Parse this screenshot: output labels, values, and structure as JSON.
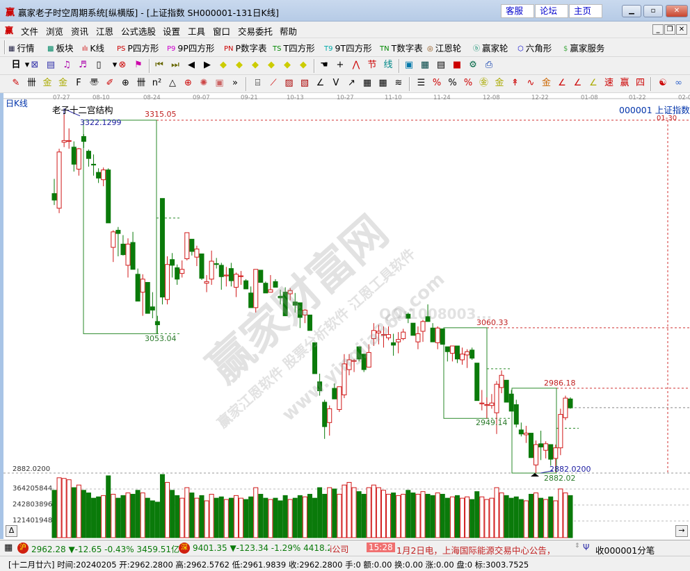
{
  "window": {
    "title": "赢家老子时空周期系统[纵横版] - [上证指数  SH000001-131日K线]",
    "logo": "赢",
    "links": [
      "客服",
      "论坛",
      "主页"
    ],
    "controls": [
      "minimize",
      "restore",
      "close"
    ]
  },
  "menu": {
    "logo": "赢",
    "items": [
      "文件",
      "浏览",
      "资讯",
      "江恩",
      "公式选股",
      "设置",
      "工具",
      "窗口",
      "交易委托",
      "帮助"
    ]
  },
  "toolbar1": [
    {
      "icon": "quote-table-icon",
      "glyph": "▦",
      "color": "#224",
      "label": "行情"
    },
    {
      "icon": "sector-blocks-icon",
      "glyph": "▩",
      "color": "#086",
      "label": "板块"
    },
    {
      "icon": "kline-icon",
      "glyph": "ılı",
      "color": "#c00",
      "label": "K线"
    },
    {
      "icon": "ps-icon",
      "glyph": "PS",
      "color": "#c00",
      "label": "P四方形"
    },
    {
      "icon": "p9-icon",
      "glyph": "P9",
      "color": "#c0c",
      "label": "9P四方形"
    },
    {
      "icon": "pn-icon",
      "glyph": "PN",
      "color": "#c00",
      "label": "P数字表"
    },
    {
      "icon": "ts-icon",
      "glyph": "TS",
      "color": "#080",
      "label": "T四方形"
    },
    {
      "icon": "t9-icon",
      "glyph": "T9",
      "color": "#0aa",
      "label": "9T四方形"
    },
    {
      "icon": "tn-icon",
      "glyph": "TN",
      "color": "#080",
      "label": "T数字表"
    },
    {
      "icon": "gann-wheel-icon",
      "glyph": "◎",
      "color": "#840",
      "label": "江恩轮"
    },
    {
      "icon": "yingjia-wheel-icon",
      "glyph": "ⓑ",
      "color": "#086",
      "label": "赢家轮"
    },
    {
      "icon": "hexagon-icon",
      "glyph": "⬡",
      "color": "#00c",
      "label": "六角形"
    },
    {
      "icon": "dollar-icon",
      "glyph": "$",
      "color": "#4a4",
      "label": "赢家服务"
    }
  ],
  "toolbar2": {
    "period": "日",
    "icons": [
      {
        "n": "period-dropdown-icon",
        "g": "▾",
        "c": "#000"
      },
      {
        "n": "chart-zoom-icon",
        "g": "⊠",
        "c": "#33a"
      },
      {
        "n": "document-icon",
        "g": "▤",
        "c": "#33a"
      },
      {
        "n": "wave3-icon",
        "g": "♫",
        "c": "#a0a"
      },
      {
        "n": "wave9-icon",
        "g": "♬",
        "c": "#a0a"
      },
      {
        "n": "candle-type-icon",
        "g": "▯",
        "c": "#000"
      },
      {
        "n": "candle-dropdown-icon",
        "g": "▾",
        "c": "#000"
      },
      {
        "n": "cross-pattern-icon",
        "g": "⊗",
        "c": "#c00"
      },
      {
        "n": "flag-icon",
        "g": "⚑",
        "c": "#c0a"
      },
      {
        "n": "first-icon",
        "g": "⏮",
        "c": "#660"
      },
      {
        "n": "last-icon",
        "g": "⏭",
        "c": "#660"
      },
      {
        "n": "left-arrow-icon",
        "g": "◀",
        "c": "#000"
      },
      {
        "n": "right-arrow-icon",
        "g": "▶",
        "c": "#000"
      },
      {
        "n": "move-left-icon",
        "g": "◆",
        "c": "#cc0"
      },
      {
        "n": "move-right-icon",
        "g": "◆",
        "c": "#cc0"
      },
      {
        "n": "expand-h-icon",
        "g": "◆",
        "c": "#cc0"
      },
      {
        "n": "shrink-h-icon",
        "g": "◆",
        "c": "#cc0"
      },
      {
        "n": "shrink-v-icon",
        "g": "◆",
        "c": "#cc0"
      },
      {
        "n": "expand-v-icon",
        "g": "◆",
        "c": "#cc0"
      },
      {
        "n": "hand-icon",
        "g": "☚",
        "c": "#000"
      },
      {
        "n": "crosshair-icon",
        "g": "+",
        "c": "#000"
      },
      {
        "n": "zigzag-icon",
        "g": "⋀",
        "c": "#c00"
      },
      {
        "n": "node-icon",
        "g": "节",
        "c": "#c00"
      },
      {
        "n": "line-label-icon",
        "g": "线",
        "c": "#088"
      },
      {
        "n": "calendar-icon",
        "g": "▣",
        "c": "#07a"
      },
      {
        "n": "calculator-icon",
        "g": "▦",
        "c": "#044"
      },
      {
        "n": "notes-icon",
        "g": "▤",
        "c": "#000"
      },
      {
        "n": "save-icon",
        "g": "■",
        "c": "#c00"
      },
      {
        "n": "settings-icon",
        "g": "⚙",
        "c": "#064"
      },
      {
        "n": "print-icon",
        "g": "⎙",
        "c": "#03a"
      }
    ]
  },
  "toolbar3": [
    {
      "n": "pen-icon",
      "g": "✎",
      "c": "#c00"
    },
    {
      "n": "grid-lines-icon",
      "g": "卌",
      "c": "#000"
    },
    {
      "n": "gold-lines-icon",
      "g": "金",
      "c": "#aa0"
    },
    {
      "n": "gold-lines2-icon",
      "g": "金",
      "c": "#aa0"
    },
    {
      "n": "fib-lines-icon",
      "g": "F",
      "c": "#000"
    },
    {
      "n": "spiral-icon",
      "g": "〠",
      "c": "#000"
    },
    {
      "n": "brush-icon",
      "g": "✐",
      "c": "#c00"
    },
    {
      "n": "circle-grid-icon",
      "g": "⊕",
      "c": "#000"
    },
    {
      "n": "lines-icon",
      "g": "卌",
      "c": "#000"
    },
    {
      "n": "n2-icon",
      "g": "n²",
      "c": "#000"
    },
    {
      "n": "triangle-icon",
      "g": "△",
      "c": "#000"
    },
    {
      "n": "target-icon",
      "g": "⊕",
      "c": "#c00"
    },
    {
      "n": "star-icon",
      "g": "✺",
      "c": "#c44"
    },
    {
      "n": "square-target-icon",
      "g": "▣",
      "c": "#c66"
    },
    {
      "n": "more-icon",
      "g": "»",
      "c": "#000"
    },
    {
      "n": "box-icon",
      "g": "⌸",
      "c": "#000"
    },
    {
      "n": "fan-icon",
      "g": "⟋",
      "c": "#c00"
    },
    {
      "n": "square-fan-icon",
      "g": "▨",
      "c": "#a00"
    },
    {
      "n": "square-fan2-icon",
      "g": "▧",
      "c": "#a00"
    },
    {
      "n": "angle-icon",
      "g": "∠",
      "c": "#000"
    },
    {
      "n": "v-angle-icon",
      "g": "V",
      "c": "#000"
    },
    {
      "n": "arrow-up-icon",
      "g": "↗",
      "c": "#000"
    },
    {
      "n": "grid-icon",
      "g": "▦",
      "c": "#000"
    },
    {
      "n": "grid2-icon",
      "g": "▦",
      "c": "#000"
    },
    {
      "n": "parallel-icon",
      "g": "≋",
      "c": "#000"
    },
    {
      "n": "bar-list-icon",
      "g": "☰",
      "c": "#000"
    },
    {
      "n": "percent-fan-icon",
      "g": "%",
      "c": "#c00"
    },
    {
      "n": "percent-icon",
      "g": "%",
      "c": "#000"
    },
    {
      "n": "percent-lines-icon",
      "g": "%",
      "c": "#c00"
    },
    {
      "n": "gold-circle-icon",
      "g": "㊎",
      "c": "#aa0"
    },
    {
      "n": "gold-lines3-icon",
      "g": "金",
      "c": "#aa0"
    },
    {
      "n": "rocket-icon",
      "g": "↟",
      "c": "#c00"
    },
    {
      "n": "wave-icon",
      "g": "∿",
      "c": "#c00"
    },
    {
      "n": "gold-line4-icon",
      "g": "金",
      "c": "#c60"
    },
    {
      "n": "j-angle-icon",
      "g": "∠",
      "c": "#c00"
    },
    {
      "n": "f-angle-icon",
      "g": "∠",
      "c": "#c00"
    },
    {
      "n": "gold-angle-icon",
      "g": "∠",
      "c": "#aa0"
    },
    {
      "n": "speed-angle-icon",
      "g": "速",
      "c": "#c00"
    },
    {
      "n": "ying-angle-icon",
      "g": "赢",
      "c": "#c00"
    },
    {
      "n": "four-angle-icon",
      "g": "四",
      "c": "#c00"
    },
    {
      "n": "yinyang-icon",
      "g": "☯",
      "c": "#c00"
    },
    {
      "n": "infinity-icon",
      "g": "∞",
      "c": "#36c"
    }
  ],
  "chart": {
    "period_label": "日K线",
    "structure_label": "老子十二宫结构",
    "symbol_label": "000001 上证指数",
    "date_ticks": [
      "07-27",
      "08-10",
      "08-24",
      "09-07",
      "09-21",
      "10-13",
      "10-27",
      "11-10",
      "11-24",
      "12-08",
      "12-22",
      "01-08",
      "01-22",
      "02-0"
    ],
    "y_min_label": "2882.0200",
    "volume_ticks": [
      "364205844",
      "242803896",
      "121401948"
    ],
    "annotations": {
      "box1_high": "3315.05",
      "box1_low": "3053.04",
      "peak": "3322.1299",
      "box2_high": "3060.33",
      "box2_low": "2949.14",
      "box3_high": "2986.18",
      "box3_low": "2882.02",
      "trough": "2882.0200",
      "future_date": "01-30"
    },
    "watermark": {
      "main": "赢家财富网",
      "line1": "赢家江恩软件 股票分析软件 江恩工具软件",
      "site": "www.yingjia360.com",
      "qq": "QQ:1008003..."
    },
    "colors": {
      "up": "#d01818",
      "down": "#0a7a0a",
      "box": "#2a8a2a",
      "level": "#d03030",
      "trough": "#1a1aa0"
    }
  },
  "chart_data": {
    "type": "candlestick",
    "x_ticks": [
      "07-27",
      "08-10",
      "08-24",
      "09-07",
      "09-21",
      "10-13",
      "10-27",
      "11-10",
      "11-24",
      "12-08",
      "12-22",
      "01-08",
      "01-22",
      "02-0"
    ],
    "ylim": [
      2882.02,
      3322.13
    ],
    "ohlc": [
      [
        3225,
        3243,
        3211,
        3217
      ],
      [
        3207,
        3280,
        3201,
        3276
      ],
      [
        3288,
        3322,
        3282,
        3290
      ],
      [
        3289,
        3305,
        3280,
        3290
      ],
      [
        3282,
        3289,
        3252,
        3261
      ],
      [
        3255,
        3281,
        3247,
        3280
      ],
      [
        3295,
        3298,
        3281,
        3289
      ],
      [
        3277,
        3279,
        3258,
        3268
      ],
      [
        3261,
        3273,
        3247,
        3260
      ],
      [
        3251,
        3256,
        3238,
        3244
      ],
      [
        3242,
        3257,
        3234,
        3254
      ],
      [
        3254,
        3256,
        3189,
        3189
      ],
      [
        3159,
        3180,
        3141,
        3178
      ],
      [
        3180,
        3184,
        3148,
        3176
      ],
      [
        3163,
        3174,
        3149,
        3150
      ],
      [
        3137,
        3170,
        3122,
        3163
      ],
      [
        3165,
        3178,
        3132,
        3132
      ],
      [
        3126,
        3133,
        3093,
        3093
      ],
      [
        3104,
        3126,
        3075,
        3120
      ],
      [
        3116,
        3116,
        3078,
        3078
      ],
      [
        3086,
        3104,
        3072,
        3082
      ],
      [
        3068,
        3075,
        3053,
        3064
      ],
      [
        3219,
        3219,
        3089,
        3098
      ],
      [
        3095,
        3148,
        3089,
        3138
      ],
      [
        3144,
        3152,
        3122,
        3137
      ],
      [
        3134,
        3138,
        3113,
        3120
      ],
      [
        3127,
        3143,
        3122,
        3132
      ],
      [
        3145,
        3177,
        3143,
        3177
      ],
      [
        3169,
        3169,
        3149,
        3154
      ],
      [
        3147,
        3161,
        3136,
        3157
      ],
      [
        3151,
        3151,
        3119,
        3121
      ],
      [
        3115,
        3125,
        3104,
        3117
      ],
      [
        3120,
        3155,
        3113,
        3142
      ],
      [
        3139,
        3146,
        3133,
        3138
      ],
      [
        3137,
        3140,
        3107,
        3123
      ],
      [
        3124,
        3135,
        3111,
        3125
      ],
      [
        3133,
        3140,
        3111,
        3118
      ],
      [
        3110,
        3128,
        3098,
        3126
      ],
      [
        3124,
        3130,
        3113,
        3124
      ],
      [
        3118,
        3120,
        3108,
        3108
      ],
      [
        3103,
        3111,
        3085,
        3085
      ],
      [
        3085,
        3132,
        3079,
        3132
      ],
      [
        3131,
        3131,
        3116,
        3116
      ],
      [
        3115,
        3117,
        3103,
        3103
      ],
      [
        3104,
        3125,
        3104,
        3107
      ],
      [
        3117,
        3120,
        3110,
        3110
      ],
      [
        3099,
        3107,
        3089,
        3097
      ],
      [
        3104,
        3110,
        3075,
        3075
      ],
      [
        3102,
        3109,
        3094,
        3106
      ],
      [
        3092,
        3103,
        3079,
        3088
      ],
      [
        3091,
        3091,
        3060,
        3073
      ],
      [
        3076,
        3083,
        3066,
        3082
      ],
      [
        3076,
        3076,
        3057,
        3057
      ],
      [
        3042,
        3042,
        3004,
        3004
      ],
      [
        2994,
        3004,
        2977,
        2983
      ],
      [
        2969,
        2972,
        2924,
        2939
      ],
      [
        2944,
        2965,
        2928,
        2961
      ],
      [
        2986,
        2992,
        2973,
        2973
      ],
      [
        2960,
        2988,
        2957,
        2988
      ],
      [
        2978,
        3028,
        2974,
        3016
      ],
      [
        3009,
        3028,
        3002,
        3021
      ],
      [
        3020,
        3022,
        3006,
        3020
      ],
      [
        3037,
        3037,
        3019,
        3022
      ],
      [
        3028,
        3028,
        3006,
        3009
      ],
      [
        3012,
        3040,
        3012,
        3030
      ],
      [
        3047,
        3066,
        3038,
        3057
      ],
      [
        3054,
        3064,
        3040,
        3056
      ],
      [
        3052,
        3062,
        3036,
        3052
      ],
      [
        3048,
        3062,
        3045,
        3052
      ],
      [
        3042,
        3053,
        3026,
        3039
      ],
      [
        3043,
        3055,
        3029,
        3046
      ],
      [
        3047,
        3059,
        3045,
        3055
      ],
      [
        3077,
        3079,
        3066,
        3072
      ],
      [
        3066,
        3066,
        3051,
        3051
      ],
      [
        3043,
        3062,
        3034,
        3053
      ],
      [
        3056,
        3070,
        3043,
        3068
      ],
      [
        3074,
        3089,
        3068,
        3068
      ],
      [
        3060,
        3066,
        3043,
        3043
      ],
      [
        3042,
        3062,
        3034,
        3060
      ],
      [
        3059,
        3059,
        3040,
        3040
      ],
      [
        3037,
        3037,
        3019,
        3031
      ],
      [
        3029,
        3038,
        3019,
        3038
      ],
      [
        3038,
        3038,
        3017,
        3022
      ],
      [
        3021,
        3036,
        3015,
        3028
      ],
      [
        3027,
        3034,
        3011,
        3031
      ],
      [
        3033,
        3036,
        3021,
        3023
      ],
      [
        3017,
        3017,
        2971,
        2971
      ],
      [
        2967,
        2984,
        2959,
        2968
      ],
      [
        2965,
        2975,
        2949,
        2966
      ],
      [
        2965,
        2979,
        2961,
        2968
      ],
      [
        2956,
        2995,
        2930,
        2991
      ],
      [
        2987,
        3008,
        2980,
        3002
      ],
      [
        2996,
        2996,
        2969,
        2969
      ],
      [
        2979,
        2984,
        2958,
        2958
      ],
      [
        2966,
        2972,
        2938,
        2942
      ],
      [
        2935,
        2944,
        2927,
        2930
      ],
      [
        2929,
        2940,
        2919,
        2931
      ],
      [
        2931,
        2931,
        2901,
        2901
      ],
      [
        2892,
        2922,
        2882,
        2917
      ],
      [
        2918,
        2934,
        2898,
        2914
      ],
      [
        2910,
        2921,
        2900,
        2918
      ],
      [
        2917,
        2917,
        2891,
        2899
      ],
      [
        2900,
        2917,
        2883,
        2913
      ],
      [
        2913,
        2961,
        2904,
        2954
      ],
      [
        2950,
        2977,
        2947,
        2974
      ],
      [
        2973,
        2975,
        2961,
        2962
      ]
    ],
    "volume": [
      360000000,
      455000000,
      450000000,
      440000000,
      380000000,
      400000000,
      360000000,
      340000000,
      300000000,
      310000000,
      320000000,
      470000000,
      330000000,
      300000000,
      320000000,
      340000000,
      330000000,
      360000000,
      340000000,
      300000000,
      280000000,
      270000000,
      480000000,
      420000000,
      360000000,
      320000000,
      300000000,
      380000000,
      340000000,
      300000000,
      320000000,
      280000000,
      330000000,
      300000000,
      310000000,
      290000000,
      300000000,
      320000000,
      300000000,
      290000000,
      310000000,
      380000000,
      330000000,
      300000000,
      290000000,
      300000000,
      280000000,
      320000000,
      290000000,
      300000000,
      320000000,
      310000000,
      330000000,
      300000000,
      380000000,
      330000000,
      380000000,
      370000000,
      330000000,
      400000000,
      420000000,
      380000000,
      350000000,
      330000000,
      380000000,
      400000000,
      380000000,
      360000000,
      330000000,
      340000000,
      320000000,
      330000000,
      360000000,
      340000000,
      330000000,
      350000000,
      330000000,
      320000000,
      340000000,
      330000000,
      300000000,
      310000000,
      320000000,
      300000000,
      310000000,
      290000000,
      350000000,
      310000000,
      290000000,
      300000000,
      380000000,
      340000000,
      320000000,
      300000000,
      310000000,
      290000000,
      280000000,
      330000000,
      340000000,
      300000000,
      290000000,
      310000000,
      280000000,
      370000000,
      340000000,
      320000000
    ],
    "levels": [
      3315.05,
      3053.04,
      3060.33,
      2949.14,
      2986.18,
      2882.02
    ],
    "current_price": 2962.28
  },
  "status": {
    "sh_badge": "沪",
    "sh": "2962.28 ▼-12.65 -0.43% 3459.51亿",
    "sz_badge": "深",
    "sz": "9401.35 ▼-123.34 -1.29% 4418.2",
    "news_prefix": "i公司",
    "news_time": "15:28",
    "news": "1月2日电，上海国际能源交易中心公告，",
    "tick_label": "收000001分笔",
    "detail": "[十二月廿六] 时间:20240205 开:2962.2800 高:2962.5762 低:2961.9839 收:2962.2800 手:0 额:0.00 换:0.00 涨:0.00 盘:0 标:3003.7525"
  },
  "scroll": {
    "left": "Δ",
    "right": "→"
  }
}
